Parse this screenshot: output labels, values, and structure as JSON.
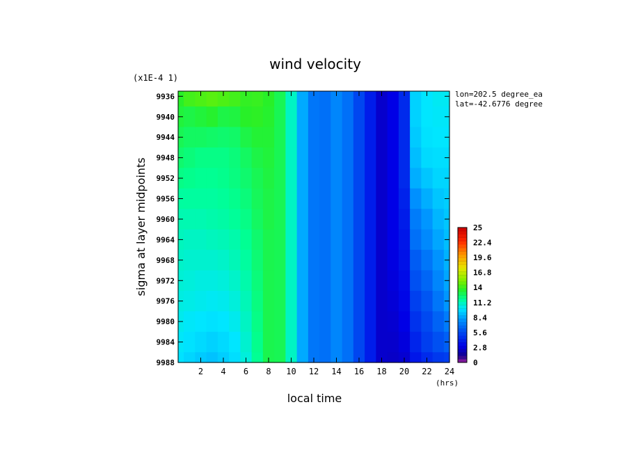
{
  "chart_data": {
    "type": "heatmap",
    "title": "wind velocity",
    "xlabel": "local time",
    "ylabel": "sigma at layer midpoints",
    "x_unit": "(hrs)",
    "y_scale_note": "(x1E-4 1)",
    "annotations": [
      "lon=202.5 degree_ea",
      "lat=-42.6776 degree"
    ],
    "x_ticks": [
      "2",
      "4",
      "6",
      "8",
      "10",
      "12",
      "14",
      "16",
      "18",
      "20",
      "22",
      "24"
    ],
    "y_ticks": [
      "9936",
      "9940",
      "9944",
      "9948",
      "9952",
      "9956",
      "9960",
      "9964",
      "9968",
      "9972",
      "9976",
      "9980",
      "9984",
      "9988"
    ],
    "xlim": [
      0,
      24
    ],
    "ylim": [
      9935,
      9988
    ],
    "y_inverted": true,
    "colorbar": {
      "min": 0,
      "max": 25,
      "tick_labels": [
        "25",
        "22.4",
        "19.6",
        "16.8",
        "14",
        "11.2",
        "8.4",
        "5.6",
        "2.8",
        "0"
      ]
    },
    "x": [
      0,
      1,
      2,
      3,
      4,
      5,
      6,
      7,
      8,
      9,
      10,
      11,
      12,
      13,
      14,
      15,
      16,
      17,
      18,
      19,
      20,
      21,
      22,
      23,
      24
    ],
    "y": [
      9936,
      9940,
      9944,
      9948,
      9952,
      9956,
      9960,
      9964,
      9968,
      9972,
      9976,
      9980,
      9984,
      9988
    ],
    "z": [
      [
        13.5,
        14.0,
        14.2,
        14.4,
        14.2,
        14.0,
        13.7,
        13.8,
        13.5,
        12.8,
        11.0,
        8.5,
        7.0,
        6.8,
        7.5,
        6.8,
        5.5,
        4.0,
        2.5,
        3.0,
        4.5,
        9.5,
        10.0,
        10.2,
        10.2
      ],
      [
        13.2,
        13.0,
        13.2,
        13.4,
        13.0,
        13.1,
        13.5,
        13.6,
        13.4,
        12.8,
        11.0,
        8.5,
        7.0,
        6.8,
        7.5,
        6.8,
        5.5,
        4.0,
        2.5,
        3.0,
        4.5,
        9.5,
        10.0,
        10.1,
        10.1
      ],
      [
        12.8,
        12.6,
        12.6,
        12.5,
        12.4,
        12.5,
        13.0,
        13.3,
        13.3,
        12.8,
        11.0,
        8.5,
        7.0,
        6.8,
        7.5,
        6.8,
        5.5,
        4.0,
        2.5,
        3.0,
        4.5,
        9.3,
        9.9,
        10.0,
        10.0
      ],
      [
        12.4,
        12.2,
        12.0,
        12.0,
        12.0,
        12.2,
        12.6,
        13.0,
        13.2,
        12.8,
        11.0,
        8.5,
        7.0,
        6.8,
        7.5,
        6.8,
        5.5,
        4.0,
        2.5,
        3.0,
        4.5,
        9.0,
        9.7,
        9.8,
        9.8
      ],
      [
        12.0,
        11.9,
        11.8,
        11.8,
        11.9,
        12.1,
        12.4,
        12.8,
        13.1,
        12.8,
        11.0,
        8.5,
        7.0,
        6.8,
        7.5,
        6.8,
        5.5,
        4.0,
        2.5,
        3.0,
        4.5,
        8.6,
        9.2,
        9.6,
        9.6
      ],
      [
        11.6,
        11.6,
        11.6,
        11.6,
        11.7,
        11.9,
        12.2,
        12.7,
        13.0,
        12.8,
        11.0,
        8.5,
        7.0,
        6.8,
        7.5,
        6.8,
        5.5,
        4.0,
        2.5,
        3.0,
        4.2,
        7.8,
        8.6,
        9.2,
        9.4
      ],
      [
        11.3,
        11.3,
        11.3,
        11.4,
        11.5,
        11.7,
        12.0,
        12.6,
        13.0,
        12.8,
        11.0,
        8.5,
        7.0,
        6.8,
        7.5,
        6.8,
        5.5,
        4.0,
        2.5,
        3.0,
        4.0,
        7.2,
        8.0,
        8.8,
        9.2
      ],
      [
        11.1,
        11.0,
        11.0,
        11.1,
        11.2,
        11.4,
        11.8,
        12.4,
        12.9,
        12.8,
        11.0,
        8.5,
        7.0,
        6.8,
        7.5,
        6.8,
        5.5,
        4.0,
        2.5,
        3.0,
        3.8,
        6.8,
        7.6,
        8.4,
        9.0
      ],
      [
        10.9,
        10.8,
        10.8,
        10.8,
        10.9,
        11.2,
        11.6,
        12.3,
        12.9,
        12.8,
        11.0,
        8.5,
        7.0,
        6.8,
        7.5,
        6.8,
        5.5,
        4.0,
        2.5,
        2.9,
        3.6,
        6.2,
        7.0,
        7.9,
        8.7
      ],
      [
        10.7,
        10.6,
        10.5,
        10.5,
        10.6,
        10.9,
        11.4,
        12.2,
        12.9,
        12.8,
        11.0,
        8.5,
        7.0,
        6.8,
        7.5,
        6.8,
        5.5,
        4.0,
        2.5,
        2.8,
        3.4,
        5.8,
        6.5,
        7.5,
        8.4
      ],
      [
        10.5,
        10.4,
        10.3,
        10.2,
        10.3,
        10.6,
        11.2,
        12.1,
        12.9,
        12.8,
        11.0,
        8.5,
        7.0,
        6.8,
        7.5,
        6.8,
        5.5,
        4.0,
        2.5,
        2.7,
        3.2,
        5.3,
        6.0,
        7.0,
        8.0
      ],
      [
        10.3,
        10.1,
        10.0,
        9.9,
        10.0,
        10.3,
        11.0,
        12.0,
        12.9,
        12.8,
        11.0,
        8.5,
        7.0,
        6.8,
        7.5,
        6.8,
        5.5,
        4.0,
        2.5,
        2.6,
        3.0,
        4.8,
        5.6,
        6.4,
        7.2
      ],
      [
        10.1,
        9.9,
        9.7,
        9.5,
        9.7,
        10.0,
        10.8,
        11.9,
        12.9,
        12.8,
        11.0,
        8.5,
        7.0,
        6.8,
        7.5,
        6.8,
        5.5,
        4.0,
        2.5,
        2.5,
        2.8,
        4.3,
        5.2,
        5.8,
        6.3
      ],
      [
        9.9,
        9.6,
        9.3,
        9.1,
        9.4,
        9.8,
        10.6,
        11.8,
        12.9,
        12.8,
        11.0,
        8.5,
        7.0,
        6.8,
        7.5,
        6.8,
        5.5,
        4.0,
        2.5,
        2.4,
        2.6,
        3.8,
        4.5,
        5.0,
        5.2
      ]
    ]
  }
}
